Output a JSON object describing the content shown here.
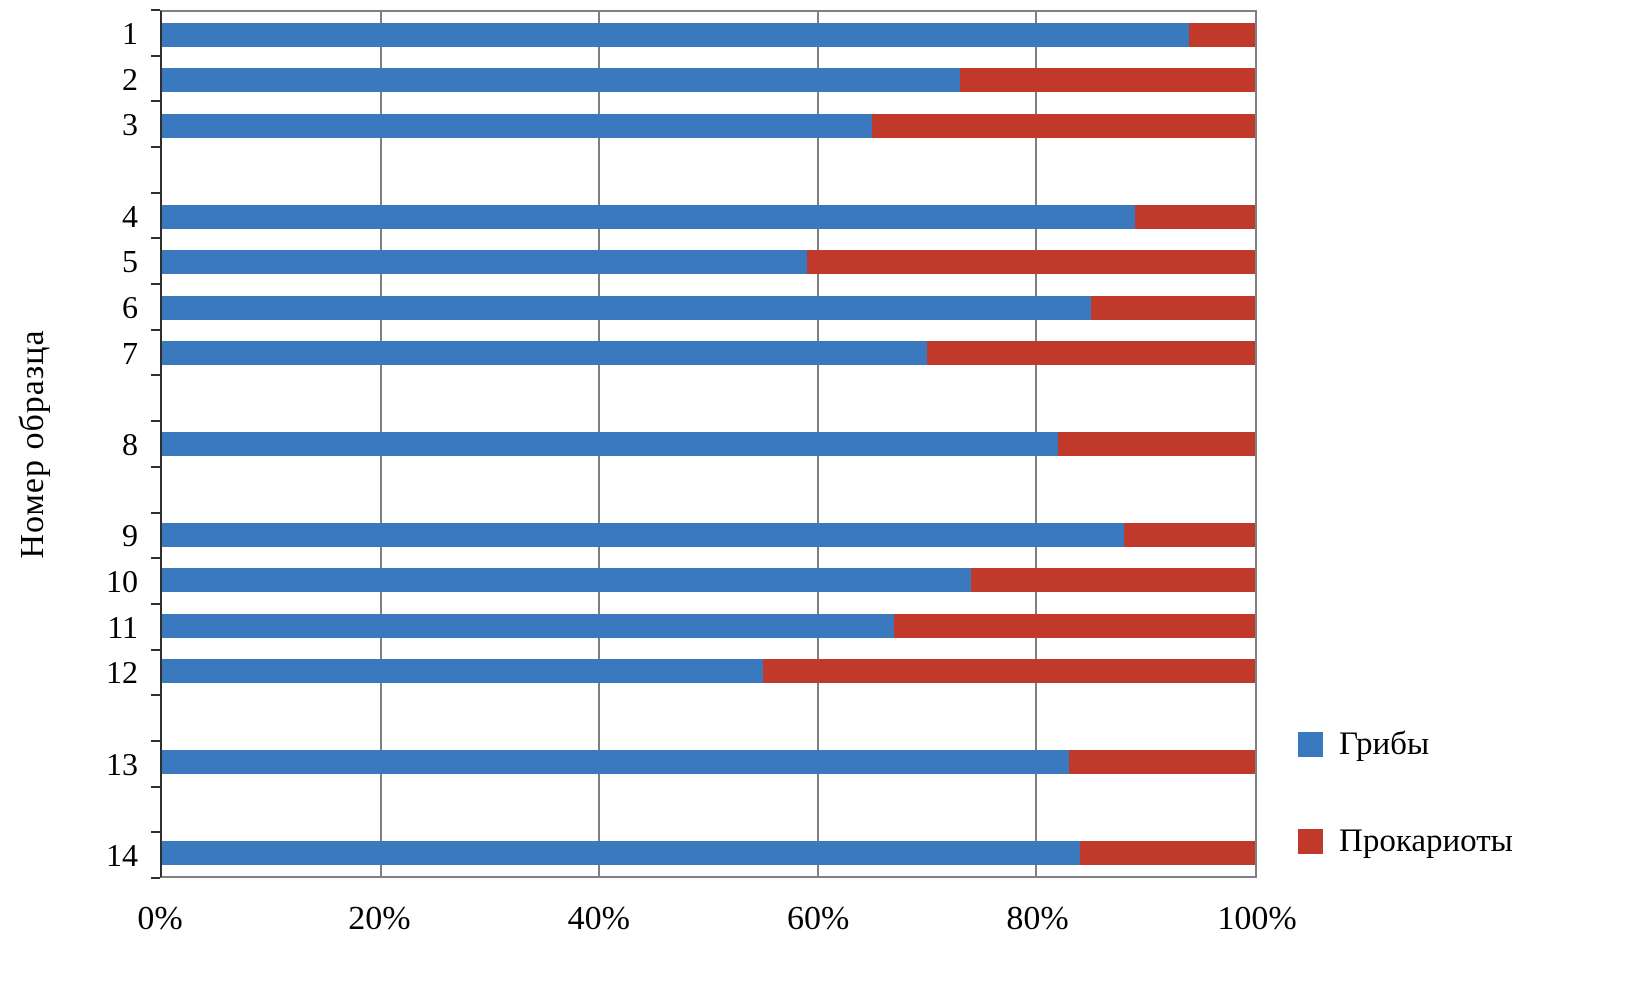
{
  "chart_data": {
    "type": "bar",
    "orientation": "horizontal",
    "stacked": true,
    "title": "",
    "xlabel": "",
    "ylabel": "Номер образца",
    "xlim": [
      0,
      100
    ],
    "grid": "vertical",
    "legend_position": "right-bottom",
    "x_ticks": [
      "0%",
      "20%",
      "40%",
      "60%",
      "80%",
      "100%"
    ],
    "categories": [
      "1",
      "2",
      "3",
      "4",
      "5",
      "6",
      "7",
      "8",
      "9",
      "10",
      "11",
      "12",
      "13",
      "14"
    ],
    "slots": [
      "1",
      "2",
      "3",
      "",
      "4",
      "5",
      "6",
      "7",
      "",
      "8",
      "",
      "9",
      "10",
      "11",
      "12",
      "",
      "13",
      "",
      "14"
    ],
    "series": [
      {
        "name": "Грибы",
        "key": "fungi",
        "color": "#3A79BE",
        "values": [
          94,
          73,
          65,
          89,
          59,
          85,
          70,
          82,
          88,
          74,
          67,
          55,
          83,
          84
        ]
      },
      {
        "name": "Прокариоты",
        "key": "prokaryotes",
        "color": "#C0392B",
        "values": [
          6,
          27,
          35,
          11,
          41,
          15,
          30,
          18,
          12,
          26,
          33,
          45,
          17,
          16
        ]
      }
    ]
  },
  "colors": {
    "background": "#FFFFFF",
    "gridline": "#7F7F7F",
    "axis": "#2F2F2F",
    "text": "#000000",
    "fungi_blue": "#3A79BE",
    "prokaryotes_red": "#C0392B"
  }
}
